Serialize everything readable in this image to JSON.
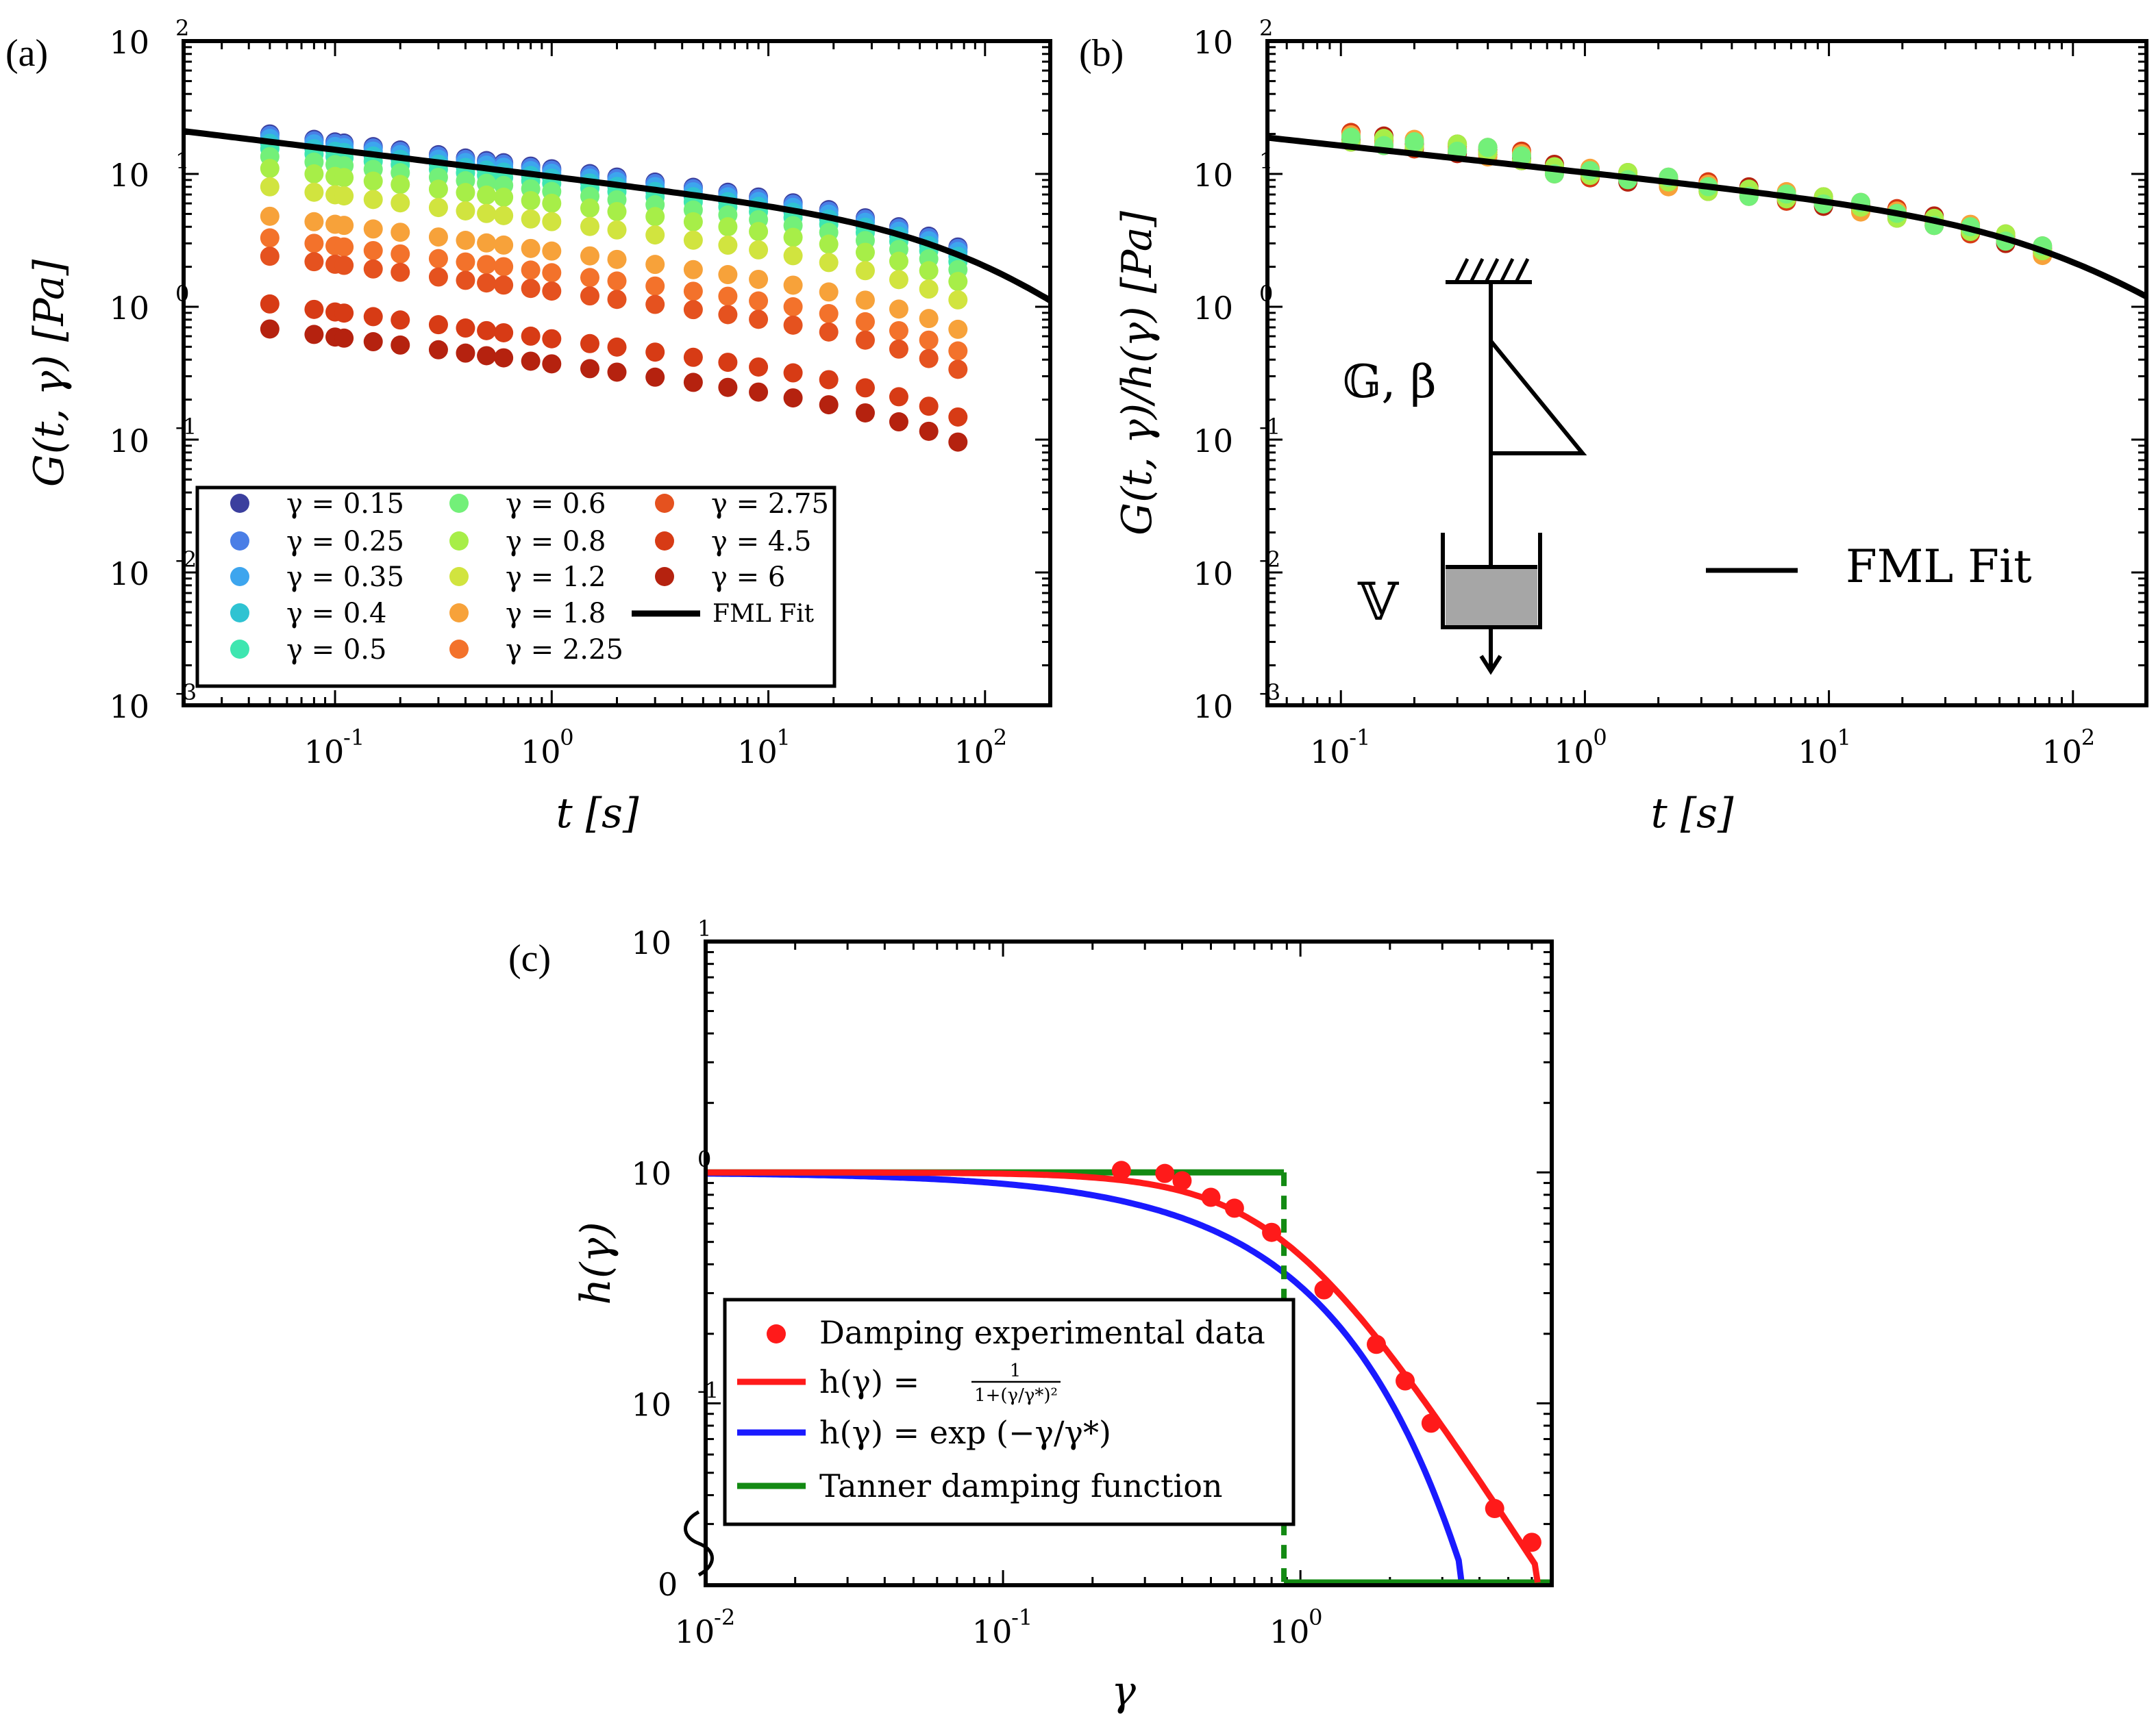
{
  "panel_labels": {
    "a": "(a)",
    "b": "(b)",
    "c": "(c)"
  },
  "chart_data": [
    {
      "id": "a",
      "type": "scatter",
      "xscale": "log",
      "yscale": "log",
      "xlim": [
        0.02,
        200
      ],
      "ylim": [
        0.001,
        100
      ],
      "xlabel": "t [s]",
      "ylabel": "G(t, γ) [Pa]",
      "xticks": [
        {
          "base": "10",
          "exp": "-1",
          "v": 0.1
        },
        {
          "base": "10",
          "exp": "0",
          "v": 1
        },
        {
          "base": "10",
          "exp": "1",
          "v": 10
        },
        {
          "base": "10",
          "exp": "2",
          "v": 100
        }
      ],
      "yticks": [
        {
          "base": "10",
          "exp": "-3",
          "v": 0.001
        },
        {
          "base": "10",
          "exp": "-2",
          "v": 0.01
        },
        {
          "base": "10",
          "exp": "-1",
          "v": 0.1
        },
        {
          "base": "10",
          "exp": "0",
          "v": 1
        },
        {
          "base": "10",
          "exp": "1",
          "v": 10
        },
        {
          "base": "10",
          "exp": "2",
          "v": 100
        }
      ],
      "t": [
        0.05,
        0.08,
        0.1,
        0.11,
        0.15,
        0.2,
        0.3,
        0.4,
        0.5,
        0.6,
        0.8,
        1.0,
        1.5,
        2.0,
        3.0,
        4.5,
        6.5,
        9.0,
        13,
        19,
        28,
        40,
        55,
        75
      ],
      "series": [
        {
          "name": "γ = 0.15",
          "color": "#3b3f9e",
          "g0": 20.0
        },
        {
          "name": "γ = 0.25",
          "color": "#4a7ee6",
          "g0": 19.5
        },
        {
          "name": "γ = 0.35",
          "color": "#3da5ee",
          "g0": 18.5
        },
        {
          "name": "γ = 0.4",
          "color": "#2fc3d2",
          "g0": 17.0
        },
        {
          "name": "γ = 0.5",
          "color": "#3ee6b0",
          "g0": 15.5
        },
        {
          "name": "γ = 0.6",
          "color": "#73f079",
          "g0": 13.5
        },
        {
          "name": "γ = 0.8",
          "color": "#a7ee48",
          "g0": 11.0
        },
        {
          "name": "γ = 1.2",
          "color": "#d1e43f",
          "g0": 8.0
        },
        {
          "name": "γ = 1.8",
          "color": "#f7a23a",
          "g0": 4.8
        },
        {
          "name": "γ = 2.25",
          "color": "#f3722b",
          "g0": 3.3
        },
        {
          "name": "γ = 2.75",
          "color": "#e5521f",
          "g0": 2.4
        },
        {
          "name": "γ = 4.5",
          "color": "#d73b15",
          "g0": 1.05
        },
        {
          "name": "γ = 6",
          "color": "#b5220f",
          "g0": 0.68
        }
      ],
      "fit": {
        "name": "FML Fit",
        "color": "#000000"
      }
    },
    {
      "id": "b",
      "type": "scatter",
      "xscale": "log",
      "yscale": "log",
      "xlim": [
        0.05,
        200
      ],
      "ylim": [
        0.001,
        100
      ],
      "xlabel": "t [s]",
      "ylabel": "G(t, γ)/h(γ) [Pa]",
      "xticks": [
        {
          "base": "10",
          "exp": "-1",
          "v": 0.1
        },
        {
          "base": "10",
          "exp": "0",
          "v": 1
        },
        {
          "base": "10",
          "exp": "1",
          "v": 10
        },
        {
          "base": "10",
          "exp": "2",
          "v": 100
        }
      ],
      "yticks": [
        {
          "base": "10",
          "exp": "-3",
          "v": 0.001
        },
        {
          "base": "10",
          "exp": "-2",
          "v": 0.01
        },
        {
          "base": "10",
          "exp": "-1",
          "v": 0.1
        },
        {
          "base": "10",
          "exp": "0",
          "v": 1
        },
        {
          "base": "10",
          "exp": "1",
          "v": 10
        },
        {
          "base": "10",
          "exp": "2",
          "v": 100
        }
      ],
      "t": [
        0.11,
        0.15,
        0.2,
        0.3,
        0.4,
        0.55,
        0.75,
        1.05,
        1.5,
        2.2,
        3.2,
        4.7,
        6.7,
        9.5,
        13.5,
        19,
        27,
        38,
        53,
        75
      ],
      "overlay_colors": [
        "#e5521f",
        "#f3722b",
        "#d73b15",
        "#b5220f",
        "#f7a23a",
        "#a7ee48",
        "#73f079"
      ],
      "inset": {
        "spring_label": "𝔾, β",
        "dashpot_label": "𝕍"
      },
      "legend": {
        "fit_label": "FML Fit"
      }
    },
    {
      "id": "c",
      "type": "line",
      "xscale": "log",
      "yscale": "log",
      "xlim": [
        0.01,
        7
      ],
      "ylim": [
        0.02,
        10
      ],
      "xlabel": "γ",
      "ylabel": "h(γ)",
      "xticks": [
        {
          "base": "10",
          "exp": "-2",
          "v": 0.01
        },
        {
          "base": "10",
          "exp": "-1",
          "v": 0.1
        },
        {
          "base": "10",
          "exp": "0",
          "v": 1
        }
      ],
      "yticks": [
        {
          "base": "10",
          "exp": "-1",
          "v": 0.1
        },
        {
          "base": "10",
          "exp": "0",
          "v": 1
        },
        {
          "base": "10",
          "exp": "1",
          "v": 10
        }
      ],
      "zero_label": "0",
      "gamma_star": 0.88,
      "data": {
        "name": "Damping experimental data",
        "gamma": [
          0.25,
          0.35,
          0.4,
          0.5,
          0.6,
          0.8,
          1.2,
          1.8,
          2.25,
          2.75,
          4.5,
          6.0
        ],
        "h": [
          1.02,
          0.99,
          0.92,
          0.78,
          0.7,
          0.55,
          0.31,
          0.18,
          0.125,
          0.082,
          0.035,
          0.025
        ],
        "color": "#ff1a1a"
      },
      "series": [
        {
          "name_prefix": "h(γ) = ",
          "frac_num": "1",
          "frac_den": "1+(γ/γ*)²",
          "color": "#ff1a1a"
        },
        {
          "name": "h(γ) = exp (−γ/γ*)",
          "color": "#1a1aff"
        },
        {
          "name": "Tanner damping function",
          "color": "#138a13"
        }
      ]
    }
  ]
}
